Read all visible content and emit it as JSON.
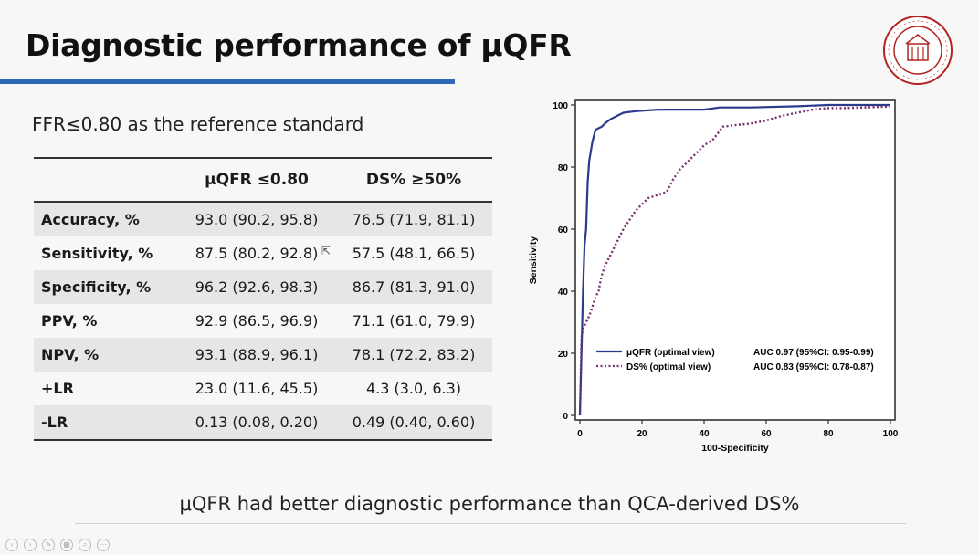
{
  "slide": {
    "title": "Diagnostic performance of μQFR",
    "subtitle": "FFR≤0.80 as the reference standard",
    "conclusion": "μQFR had better diagnostic performance than QCA-derived DS%",
    "accent_color": "#2f68b5"
  },
  "table": {
    "headers": [
      "",
      "μQFR ≤0.80",
      "DS% ≥50%"
    ],
    "rows": [
      {
        "metric": "Accuracy, %",
        "qfr": "93.0 (90.2, 95.8)",
        "ds": "76.5 (71.9, 81.1)",
        "shaded": true
      },
      {
        "metric": "Sensitivity, %",
        "qfr": "87.5 (80.2, 92.8)",
        "ds": "57.5 (48.1, 66.5)",
        "shaded": false
      },
      {
        "metric": "Specificity, %",
        "qfr": "96.2 (92.6, 98.3)",
        "ds": "86.7 (81.3, 91.0)",
        "shaded": true
      },
      {
        "metric": "PPV, %",
        "qfr": "92.9 (86.5, 96.9)",
        "ds": "71.1 (61.0, 79.9)",
        "shaded": false
      },
      {
        "metric": "NPV, %",
        "qfr": "93.1 (88.9, 96.1)",
        "ds": "78.1 (72.2, 83.2)",
        "shaded": true
      },
      {
        "metric": "+LR",
        "qfr": "23.0 (11.6, 45.5)",
        "ds": "4.3 (3.0, 6.3)",
        "shaded": false
      },
      {
        "metric": "-LR",
        "qfr": "0.13 (0.08, 0.20)",
        "ds": "0.49 (0.40, 0.60)",
        "shaded": true
      }
    ]
  },
  "chart_data": {
    "type": "line",
    "xlabel": "100-Specificity",
    "ylabel": "Sensitivity",
    "xlim": [
      0,
      100
    ],
    "ylim": [
      0,
      100
    ],
    "xticks": [
      0,
      20,
      40,
      60,
      80,
      100
    ],
    "yticks": [
      0,
      20,
      40,
      60,
      80,
      100
    ],
    "grid": false,
    "legend_position": "bottom-right",
    "series": [
      {
        "name": "μQFR (optimal view)",
        "auc_label": "AUC 0.97 (95%CI: 0.95-0.99)",
        "color": "#2b3a8c",
        "style": "solid",
        "x": [
          0,
          0.5,
          1,
          1.5,
          2,
          2.5,
          3,
          3.5,
          4,
          4.5,
          5,
          6,
          7,
          8,
          10,
          12,
          14,
          18,
          25,
          35,
          40,
          45,
          55,
          70,
          80,
          100
        ],
        "y": [
          0,
          20,
          40,
          55,
          60,
          75,
          82,
          85,
          88,
          90,
          92,
          92.5,
          93,
          94,
          95.5,
          96.5,
          97.5,
          98,
          98.5,
          98.5,
          98.5,
          99.2,
          99.2,
          99.6,
          100,
          100
        ]
      },
      {
        "name": "DS% (optimal view)",
        "auc_label": "AUC 0.83 (95%CI: 0.78-0.87)",
        "color": "#7a2e6e",
        "style": "dotted",
        "x": [
          0,
          0.5,
          1,
          2,
          3,
          4,
          5,
          6,
          7,
          8,
          9,
          10,
          12,
          14,
          16,
          18,
          20,
          22,
          25,
          28,
          30,
          32,
          35,
          38,
          40,
          43,
          46,
          50,
          55,
          60,
          65,
          70,
          75,
          80,
          85,
          100
        ],
        "y": [
          0,
          25,
          28,
          30,
          32,
          35,
          38,
          40,
          45,
          48,
          50,
          52,
          56,
          60,
          63,
          66,
          68,
          70,
          71,
          72,
          76,
          79,
          82,
          85,
          87,
          89,
          93,
          93.5,
          94,
          95,
          96.5,
          97.5,
          98.5,
          99,
          99,
          99.5
        ]
      }
    ]
  }
}
